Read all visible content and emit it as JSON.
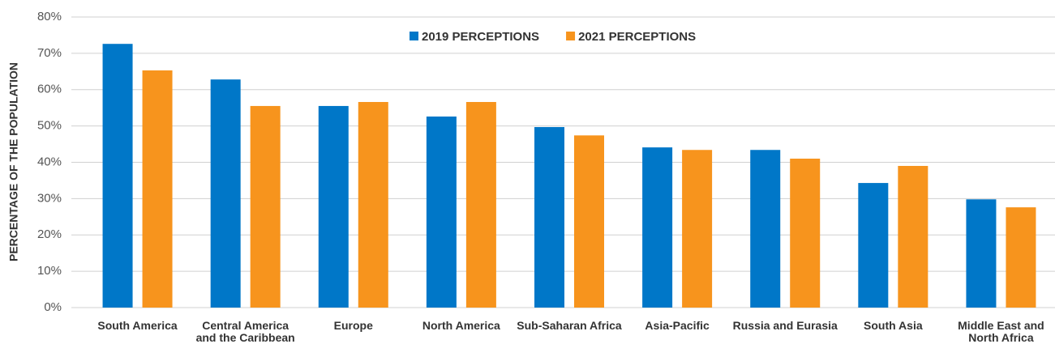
{
  "chart_data": {
    "type": "bar",
    "y_label": "PERCENTAGE OF THE POPULATION",
    "categories": [
      "South America",
      "Central America and the Caribbean",
      "Europe",
      "North America",
      "Sub-Saharan Africa",
      "Asia-Pacific",
      "Russia and Eurasia",
      "South Asia",
      "Middle East and North Africa"
    ],
    "series": [
      {
        "name": "2019 PERCEPTIONS",
        "color": "#0077c8",
        "values": [
          72.6,
          62.8,
          55.5,
          52.6,
          49.7,
          44.1,
          43.4,
          34.3,
          29.8
        ]
      },
      {
        "name": "2021 PERCEPTIONS",
        "color": "#f7941d",
        "values": [
          65.3,
          55.5,
          56.6,
          56.6,
          47.4,
          43.4,
          41.0,
          39.0,
          27.6
        ]
      }
    ],
    "ylim": [
      0,
      80
    ],
    "yticks": [
      {
        "value": 0,
        "label": "0%"
      },
      {
        "value": 10,
        "label": "10%"
      },
      {
        "value": 20,
        "label": "20%"
      },
      {
        "value": 30,
        "label": "30%"
      },
      {
        "value": 40,
        "label": "40%"
      },
      {
        "value": 50,
        "label": "50%"
      },
      {
        "value": 60,
        "label": "60%"
      },
      {
        "value": 70,
        "label": "70%"
      },
      {
        "value": 80,
        "label": "80%"
      }
    ],
    "grid": true,
    "legend": "top"
  }
}
